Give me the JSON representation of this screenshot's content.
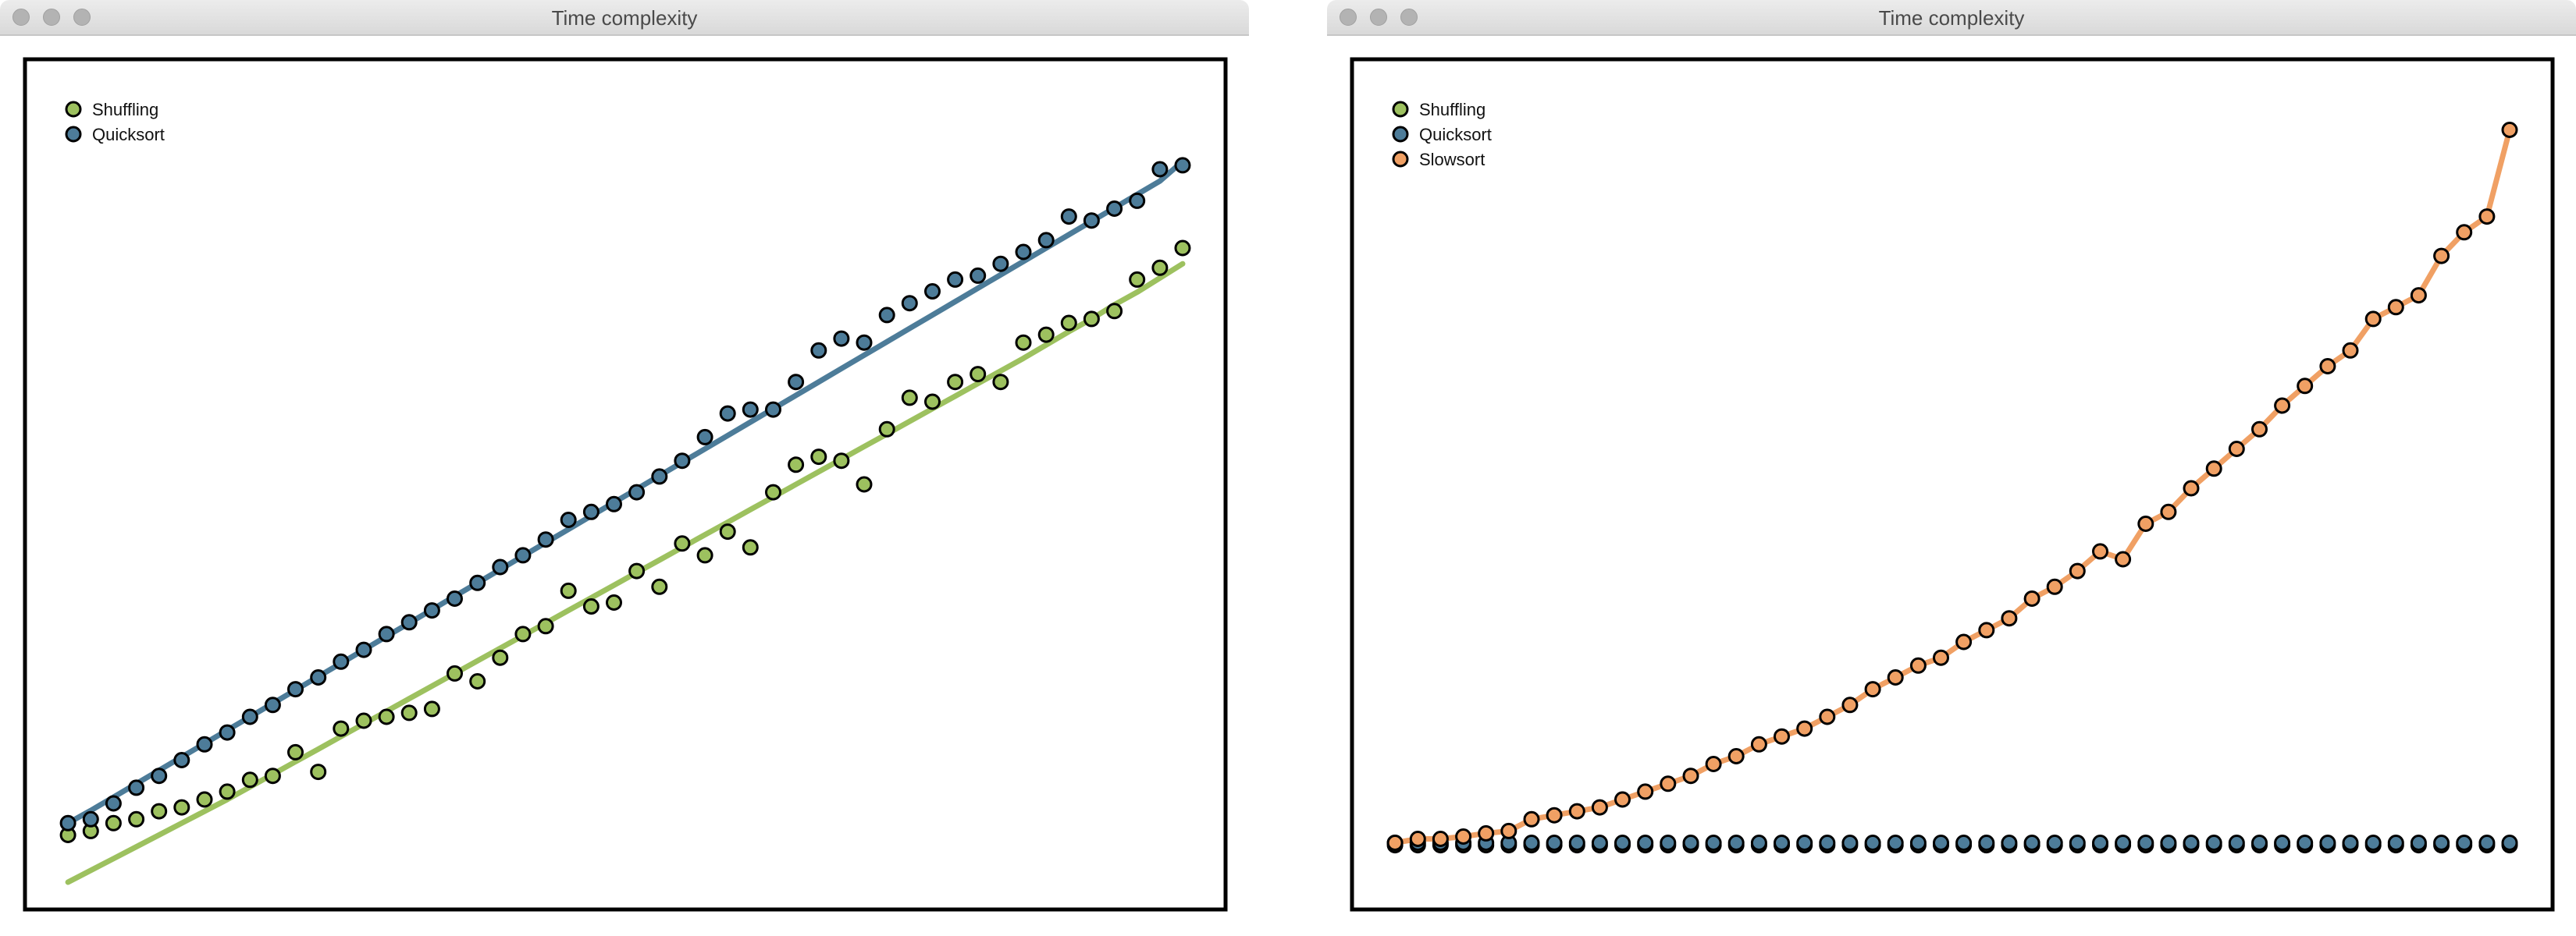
{
  "windows": [
    {
      "title": "Time complexity",
      "chart_data": {
        "type": "scatter",
        "title": "",
        "xlabel": "",
        "ylabel": "",
        "xlim": [
          0,
          50
        ],
        "ylim": [
          0,
          100
        ],
        "grid": false,
        "legend_placement": "top-left",
        "series": [
          {
            "name": "Shuffling",
            "color": "#9dc15f",
            "x": [
              1,
              2,
              3,
              4,
              5,
              6,
              7,
              8,
              9,
              10,
              11,
              12,
              13,
              14,
              15,
              16,
              17,
              18,
              19,
              20,
              21,
              22,
              23,
              24,
              25,
              26,
              27,
              28,
              29,
              30,
              31,
              32,
              33,
              34,
              35,
              36,
              37,
              38,
              39,
              40,
              41,
              42,
              43,
              44,
              45,
              46,
              47,
              48,
              49,
              50
            ],
            "values": [
              5.5,
              6,
              7,
              7.5,
              8.5,
              9,
              10,
              11,
              12.5,
              13,
              16,
              13.5,
              19,
              20,
              20.5,
              21,
              21.5,
              26,
              25,
              28,
              31,
              32,
              36.5,
              34.5,
              35,
              39,
              37,
              42.5,
              41,
              44,
              42,
              49,
              52.5,
              53.5,
              53,
              50,
              57,
              61,
              60.5,
              63,
              64,
              63,
              68,
              69,
              70.5,
              71,
              72,
              76,
              77.5,
              80
            ],
            "fit": [
              -0.5,
              1,
              2.5,
              4,
              5.5,
              7,
              8.5,
              10,
              11.6,
              13.2,
              14.8,
              16.4,
              18,
              19.6,
              21.2,
              22.8,
              24.4,
              26,
              27.6,
              29.2,
              30.8,
              32.4,
              34,
              35.6,
              37.2,
              38.8,
              40.4,
              42,
              43.6,
              45.2,
              46.8,
              48.4,
              50,
              51.6,
              53.2,
              54.8,
              56.4,
              58,
              59.6,
              61.2,
              62.8,
              64.4,
              66,
              67.7,
              69.4,
              71,
              72.8,
              74.4,
              76.2,
              78
            ]
          },
          {
            "name": "Quicksort",
            "color": "#4d7c99",
            "x": [
              1,
              2,
              3,
              4,
              5,
              6,
              7,
              8,
              9,
              10,
              11,
              12,
              13,
              14,
              15,
              16,
              17,
              18,
              19,
              20,
              21,
              22,
              23,
              24,
              25,
              26,
              27,
              28,
              29,
              30,
              31,
              32,
              33,
              34,
              35,
              36,
              37,
              38,
              39,
              40,
              41,
              42,
              43,
              44,
              45,
              46,
              47,
              48,
              49,
              50
            ],
            "values": [
              7,
              7.5,
              9.5,
              11.5,
              13,
              15,
              17,
              18.5,
              20.5,
              22,
              24,
              25.5,
              27.5,
              29,
              31,
              32.5,
              34,
              35.5,
              37.5,
              39.5,
              41,
              43,
              45.5,
              46.5,
              47.5,
              49,
              51,
              53,
              56,
              59,
              59.5,
              59.5,
              63,
              67,
              68.5,
              68,
              71.5,
              73,
              74.5,
              76,
              76.5,
              78,
              79.5,
              81,
              84,
              83.5,
              85,
              86,
              90,
              90.5
            ],
            "fit": [
              7,
              8.6,
              10.3,
              12,
              13.7,
              15.4,
              17.1,
              18.8,
              20.5,
              22.2,
              23.9,
              25.6,
              27.3,
              29,
              30.7,
              32.4,
              34.1,
              35.8,
              37.5,
              39.2,
              40.9,
              42.6,
              44.3,
              46,
              47.7,
              49.4,
              51.1,
              52.8,
              54.5,
              56.2,
              57.9,
              59.6,
              61.3,
              63,
              64.7,
              66.4,
              68.1,
              69.8,
              71.5,
              73.2,
              74.9,
              76.6,
              78.3,
              80,
              81.7,
              83.4,
              85.1,
              86.8,
              88.5,
              91
            ]
          }
        ]
      }
    },
    {
      "title": "Time complexity",
      "chart_data": {
        "type": "scatter",
        "title": "",
        "xlabel": "",
        "ylabel": "",
        "xlim": [
          0,
          50
        ],
        "ylim": [
          0,
          100
        ],
        "grid": false,
        "legend_placement": "top-left",
        "series": [
          {
            "name": "Shuffling",
            "color": "#9dc15f",
            "x": [
              1,
              2,
              3,
              4,
              5,
              6,
              7,
              8,
              9,
              10,
              11,
              12,
              13,
              14,
              15,
              16,
              17,
              18,
              19,
              20,
              21,
              22,
              23,
              24,
              25,
              26,
              27,
              28,
              29,
              30,
              31,
              32,
              33,
              34,
              35,
              36,
              37,
              38,
              39,
              40,
              41,
              42,
              43,
              44,
              45,
              46,
              47,
              48,
              49,
              50
            ],
            "values": [
              4.2,
              4.2,
              4.2,
              4.2,
              4.2,
              4.2,
              4.2,
              4.2,
              4.2,
              4.2,
              4.2,
              4.2,
              4.2,
              4.2,
              4.2,
              4.2,
              4.2,
              4.2,
              4.2,
              4.2,
              4.2,
              4.2,
              4.2,
              4.2,
              4.2,
              4.2,
              4.2,
              4.2,
              4.2,
              4.2,
              4.2,
              4.2,
              4.2,
              4.2,
              4.2,
              4.2,
              4.2,
              4.2,
              4.2,
              4.2,
              4.2,
              4.2,
              4.2,
              4.2,
              4.2,
              4.2,
              4.2,
              4.2,
              4.2,
              4.2
            ]
          },
          {
            "name": "Quicksort",
            "color": "#4d7c99",
            "x": [
              1,
              2,
              3,
              4,
              5,
              6,
              7,
              8,
              9,
              10,
              11,
              12,
              13,
              14,
              15,
              16,
              17,
              18,
              19,
              20,
              21,
              22,
              23,
              24,
              25,
              26,
              27,
              28,
              29,
              30,
              31,
              32,
              33,
              34,
              35,
              36,
              37,
              38,
              39,
              40,
              41,
              42,
              43,
              44,
              45,
              46,
              47,
              48,
              49,
              50
            ],
            "values": [
              4.5,
              4.5,
              4.5,
              4.5,
              4.5,
              4.5,
              4.5,
              4.5,
              4.5,
              4.5,
              4.5,
              4.5,
              4.5,
              4.5,
              4.5,
              4.5,
              4.5,
              4.5,
              4.5,
              4.5,
              4.5,
              4.5,
              4.5,
              4.5,
              4.5,
              4.5,
              4.5,
              4.5,
              4.5,
              4.5,
              4.5,
              4.5,
              4.5,
              4.5,
              4.5,
              4.5,
              4.5,
              4.5,
              4.5,
              4.5,
              4.5,
              4.5,
              4.5,
              4.5,
              4.5,
              4.5,
              4.5,
              4.5,
              4.5,
              4.5
            ]
          },
          {
            "name": "Slowsort",
            "color": "#f0a064",
            "x": [
              1,
              2,
              3,
              4,
              5,
              6,
              7,
              8,
              9,
              10,
              11,
              12,
              13,
              14,
              15,
              16,
              17,
              18,
              19,
              20,
              21,
              22,
              23,
              24,
              25,
              26,
              27,
              28,
              29,
              30,
              31,
              32,
              33,
              34,
              35,
              36,
              37,
              38,
              39,
              40,
              41,
              42,
              43,
              44,
              45,
              46,
              47,
              48,
              49,
              50
            ],
            "values": [
              4.5,
              5,
              5,
              5.3,
              5.7,
              6,
              7.5,
              8,
              8.5,
              9,
              10,
              11,
              12,
              13,
              14.5,
              15.5,
              17,
              18,
              19,
              20.5,
              22,
              24,
              25.5,
              27,
              28,
              30,
              31.5,
              33,
              35.5,
              37,
              39,
              41.5,
              40.5,
              45,
              46.5,
              49.5,
              52,
              54.5,
              57,
              60,
              62.5,
              65,
              67,
              71,
              72.5,
              74,
              79,
              82,
              84,
              95
            ]
          }
        ]
      }
    }
  ]
}
